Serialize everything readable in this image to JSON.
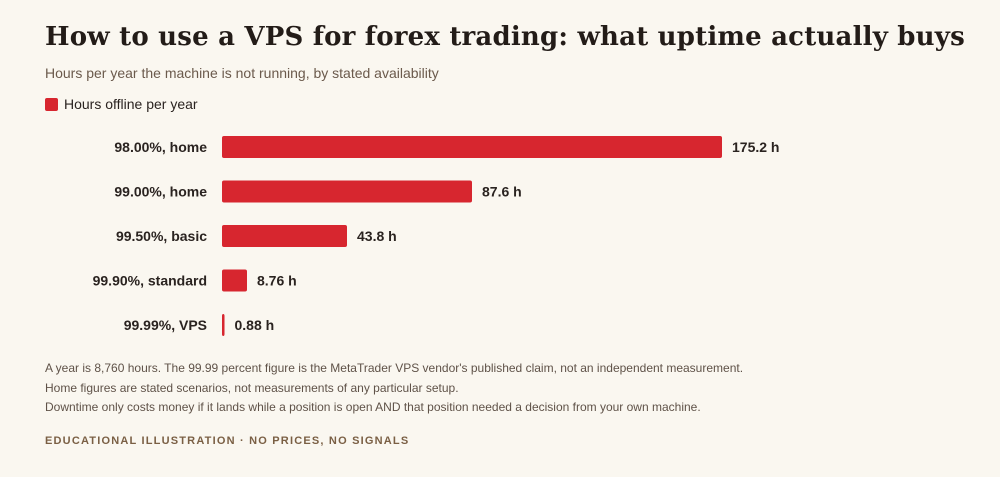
{
  "title": "How to use a VPS for forex trading: what uptime actually buys",
  "subtitle": "Hours per year the machine is not running, by stated availability",
  "legend": {
    "label": "Hours offline per year",
    "color": "#d7262f"
  },
  "chart_data": {
    "type": "bar",
    "orientation": "horizontal",
    "title": "How to use a VPS for forex trading: what uptime actually buys",
    "subtitle": "Hours per year the machine is not running, by stated availability",
    "categories": [
      "98.00%, home",
      "99.00%, home",
      "99.50%, basic",
      "99.90%, standard",
      "99.99%, VPS"
    ],
    "series": [
      {
        "name": "Hours offline per year",
        "color": "#d7262f",
        "values": [
          175.2,
          87.6,
          43.8,
          8.76,
          0.88
        ]
      }
    ],
    "value_labels": [
      "175.2 h",
      "87.6 h",
      "43.8 h",
      "8.76 h",
      "0.88 h"
    ],
    "xlim": [
      0,
      175.2
    ],
    "grid": false,
    "legend_position": "top-left"
  },
  "notes": [
    "A year is 8,760 hours. The 99.99 percent figure is the MetaTrader VPS vendor's published claim, not an independent measurement.",
    "Home figures are stated scenarios, not measurements of any particular setup.",
    "Downtime only costs money if it lands while a position is open AND that position needed a decision from your own machine."
  ],
  "footer": "EDUCATIONAL ILLUSTRATION · NO PRICES, NO SIGNALS"
}
